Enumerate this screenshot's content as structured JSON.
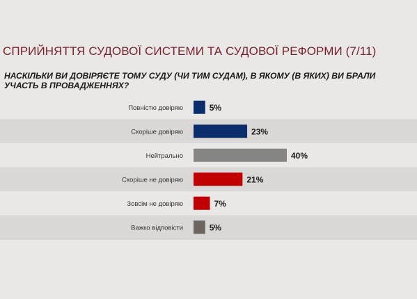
{
  "page": {
    "title": "СПРИЙНЯТТЯ СУДОВОЇ СИСТЕМИ ТА СУДОВОЇ РЕФОРМИ (7/11)",
    "question": "НАСКІЛЬКИ ВИ ДОВІРЯЄТЕ ТОМУ СУДУ (ЧИ ТИМ СУДАМ), В ЯКОМУ (В ЯКИХ) ВИ БРАЛИ УЧАСТЬ В ПРОВАДЖЕННЯХ?"
  },
  "colors": {
    "background": "#e9e8e6",
    "row_alt": "#d9d8d6",
    "title": "#7a1f2b"
  },
  "chart_data": {
    "type": "bar",
    "orientation": "horizontal",
    "unit": "%",
    "xlim": [
      0,
      40
    ],
    "grid": false,
    "categories": [
      "Повністю довіряю",
      "Скоріше довіряю",
      "Нейтрально",
      "Скоріше не довіряю",
      "Зовсім не довіряю",
      "Важко відповісти"
    ],
    "values": [
      5,
      23,
      40,
      21,
      7,
      5
    ],
    "value_labels": [
      "5%",
      "23%",
      "40%",
      "21%",
      "7%",
      "5%"
    ],
    "bar_colors": [
      "#0b2d6b",
      "#0b2d6b",
      "#858585",
      "#c00000",
      "#c00000",
      "#6b6660"
    ]
  }
}
